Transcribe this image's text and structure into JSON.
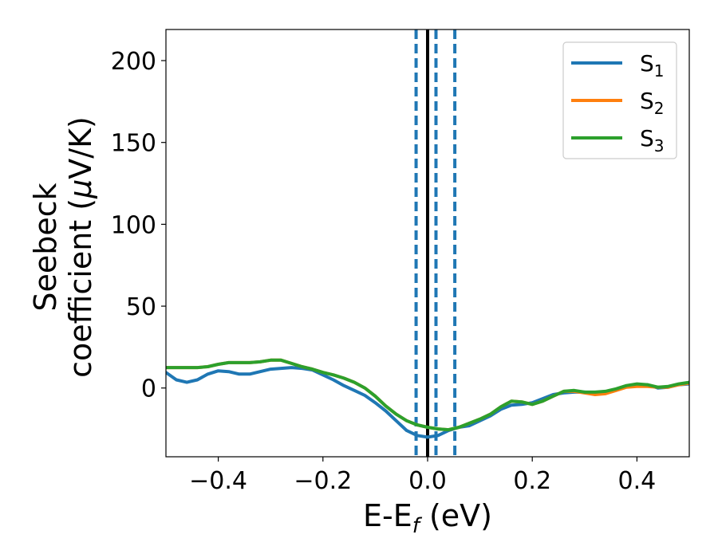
{
  "chart_data": {
    "type": "line",
    "xlabel": "E-E",
    "xlabel_sub": "f",
    "xlabel_unit": " (eV)",
    "ylabel_line1": "Seebeck",
    "ylabel_line2": "coefficient  (",
    "ylabel_mu": "μ",
    "ylabel_unit": "V/K)",
    "xlim": [
      -0.5,
      0.5
    ],
    "ylim": [
      -42,
      219
    ],
    "xticks": [
      -0.4,
      -0.2,
      0.0,
      0.2,
      0.4
    ],
    "xtick_labels": [
      "−0.4",
      "−0.2",
      "0.0",
      "0.2",
      "0.4"
    ],
    "yticks": [
      0,
      50,
      100,
      150,
      200
    ],
    "ytick_labels": [
      "0",
      "50",
      "100",
      "150",
      "200"
    ],
    "grid": false,
    "legend_position": "top-right",
    "vlines": [
      {
        "x": 0.0,
        "color": "#000000",
        "style": "solid"
      },
      {
        "x": -0.022,
        "color": "#1f77b4",
        "style": "dashed"
      },
      {
        "x": 0.016,
        "color": "#1f77b4",
        "style": "dashed"
      },
      {
        "x": 0.052,
        "color": "#1f77b4",
        "style": "dashed"
      }
    ],
    "series": [
      {
        "name": "S",
        "sub": "1",
        "color": "#1f77b4",
        "x": [
          -0.5,
          -0.48,
          -0.46,
          -0.44,
          -0.42,
          -0.4,
          -0.38,
          -0.36,
          -0.34,
          -0.32,
          -0.3,
          -0.28,
          -0.26,
          -0.24,
          -0.22,
          -0.2,
          -0.18,
          -0.16,
          -0.14,
          -0.12,
          -0.1,
          -0.08,
          -0.06,
          -0.04,
          -0.02,
          0.0,
          0.02,
          0.04,
          0.06,
          0.08,
          0.1,
          0.12,
          0.14,
          0.16,
          0.18,
          0.2,
          0.22,
          0.24,
          0.26,
          0.28,
          0.3,
          0.32,
          0.34,
          0.36,
          0.38,
          0.4,
          0.42,
          0.44,
          0.46,
          0.48,
          0.5
        ],
        "y": [
          9.5,
          5,
          3.5,
          5,
          8.5,
          10.5,
          10,
          8.5,
          8.5,
          10,
          11.5,
          12,
          12.5,
          12,
          11,
          8,
          5,
          1.5,
          -1.5,
          -4.5,
          -9,
          -14,
          -20,
          -26,
          -29,
          -30,
          -29,
          -26,
          -24,
          -23,
          -20,
          -17,
          -13,
          -10.5,
          -10,
          -9,
          -6.5,
          -4,
          -3,
          -2.5,
          -2.5,
          -3,
          -2.5,
          -1,
          1,
          2,
          2,
          0,
          0.5,
          2,
          2.5
        ]
      },
      {
        "name": "S",
        "sub": "2",
        "color": "#ff7f0e",
        "x": [
          -0.5,
          -0.48,
          -0.46,
          -0.44,
          -0.42,
          -0.4,
          -0.38,
          -0.36,
          -0.34,
          -0.32,
          -0.3,
          -0.28,
          -0.26,
          -0.24,
          -0.22,
          -0.2,
          -0.18,
          -0.16,
          -0.14,
          -0.12,
          -0.1,
          -0.08,
          -0.06,
          -0.04,
          -0.02,
          0.0,
          0.02,
          0.04,
          0.06,
          0.08,
          0.1,
          0.12,
          0.14,
          0.16,
          0.18,
          0.2,
          0.22,
          0.24,
          0.26,
          0.28,
          0.3,
          0.32,
          0.34,
          0.36,
          0.38,
          0.4,
          0.42,
          0.44,
          0.46,
          0.48,
          0.5
        ],
        "y": [
          12.5,
          12.5,
          12.5,
          12.5,
          13,
          14.5,
          15.5,
          15.5,
          15.5,
          16,
          17,
          17,
          15,
          13,
          11.5,
          9.5,
          8,
          6,
          3.5,
          0,
          -5,
          -11,
          -16,
          -20,
          -22.5,
          -24,
          -25,
          -25.5,
          -24,
          -21.5,
          -19,
          -16,
          -11.5,
          -8,
          -8.5,
          -10,
          -8,
          -5,
          -2,
          -2,
          -3,
          -4,
          -3.5,
          -1.5,
          0.5,
          1,
          1,
          0.5,
          0.5,
          2,
          3
        ]
      },
      {
        "name": "S",
        "sub": "3",
        "color": "#2ca02c",
        "x": [
          -0.5,
          -0.48,
          -0.46,
          -0.44,
          -0.42,
          -0.4,
          -0.38,
          -0.36,
          -0.34,
          -0.32,
          -0.3,
          -0.28,
          -0.26,
          -0.24,
          -0.22,
          -0.2,
          -0.18,
          -0.16,
          -0.14,
          -0.12,
          -0.1,
          -0.08,
          -0.06,
          -0.04,
          -0.02,
          0.0,
          0.02,
          0.04,
          0.06,
          0.08,
          0.1,
          0.12,
          0.14,
          0.16,
          0.18,
          0.2,
          0.22,
          0.24,
          0.26,
          0.28,
          0.3,
          0.32,
          0.34,
          0.36,
          0.38,
          0.4,
          0.42,
          0.44,
          0.46,
          0.48,
          0.5
        ],
        "y": [
          12.5,
          12.5,
          12.5,
          12.5,
          13,
          14.5,
          15.5,
          15.5,
          15.5,
          16,
          17,
          17,
          15,
          13,
          11.5,
          9.5,
          8,
          6,
          3.5,
          0,
          -5,
          -11,
          -16,
          -20,
          -22.5,
          -24,
          -25,
          -25.5,
          -24,
          -21.5,
          -19,
          -16,
          -11.5,
          -8,
          -8.5,
          -10,
          -8,
          -5,
          -2,
          -1.5,
          -2.5,
          -2.5,
          -2,
          -0.5,
          1.5,
          2.5,
          2,
          0.5,
          1,
          2.5,
          3.5
        ]
      }
    ]
  }
}
